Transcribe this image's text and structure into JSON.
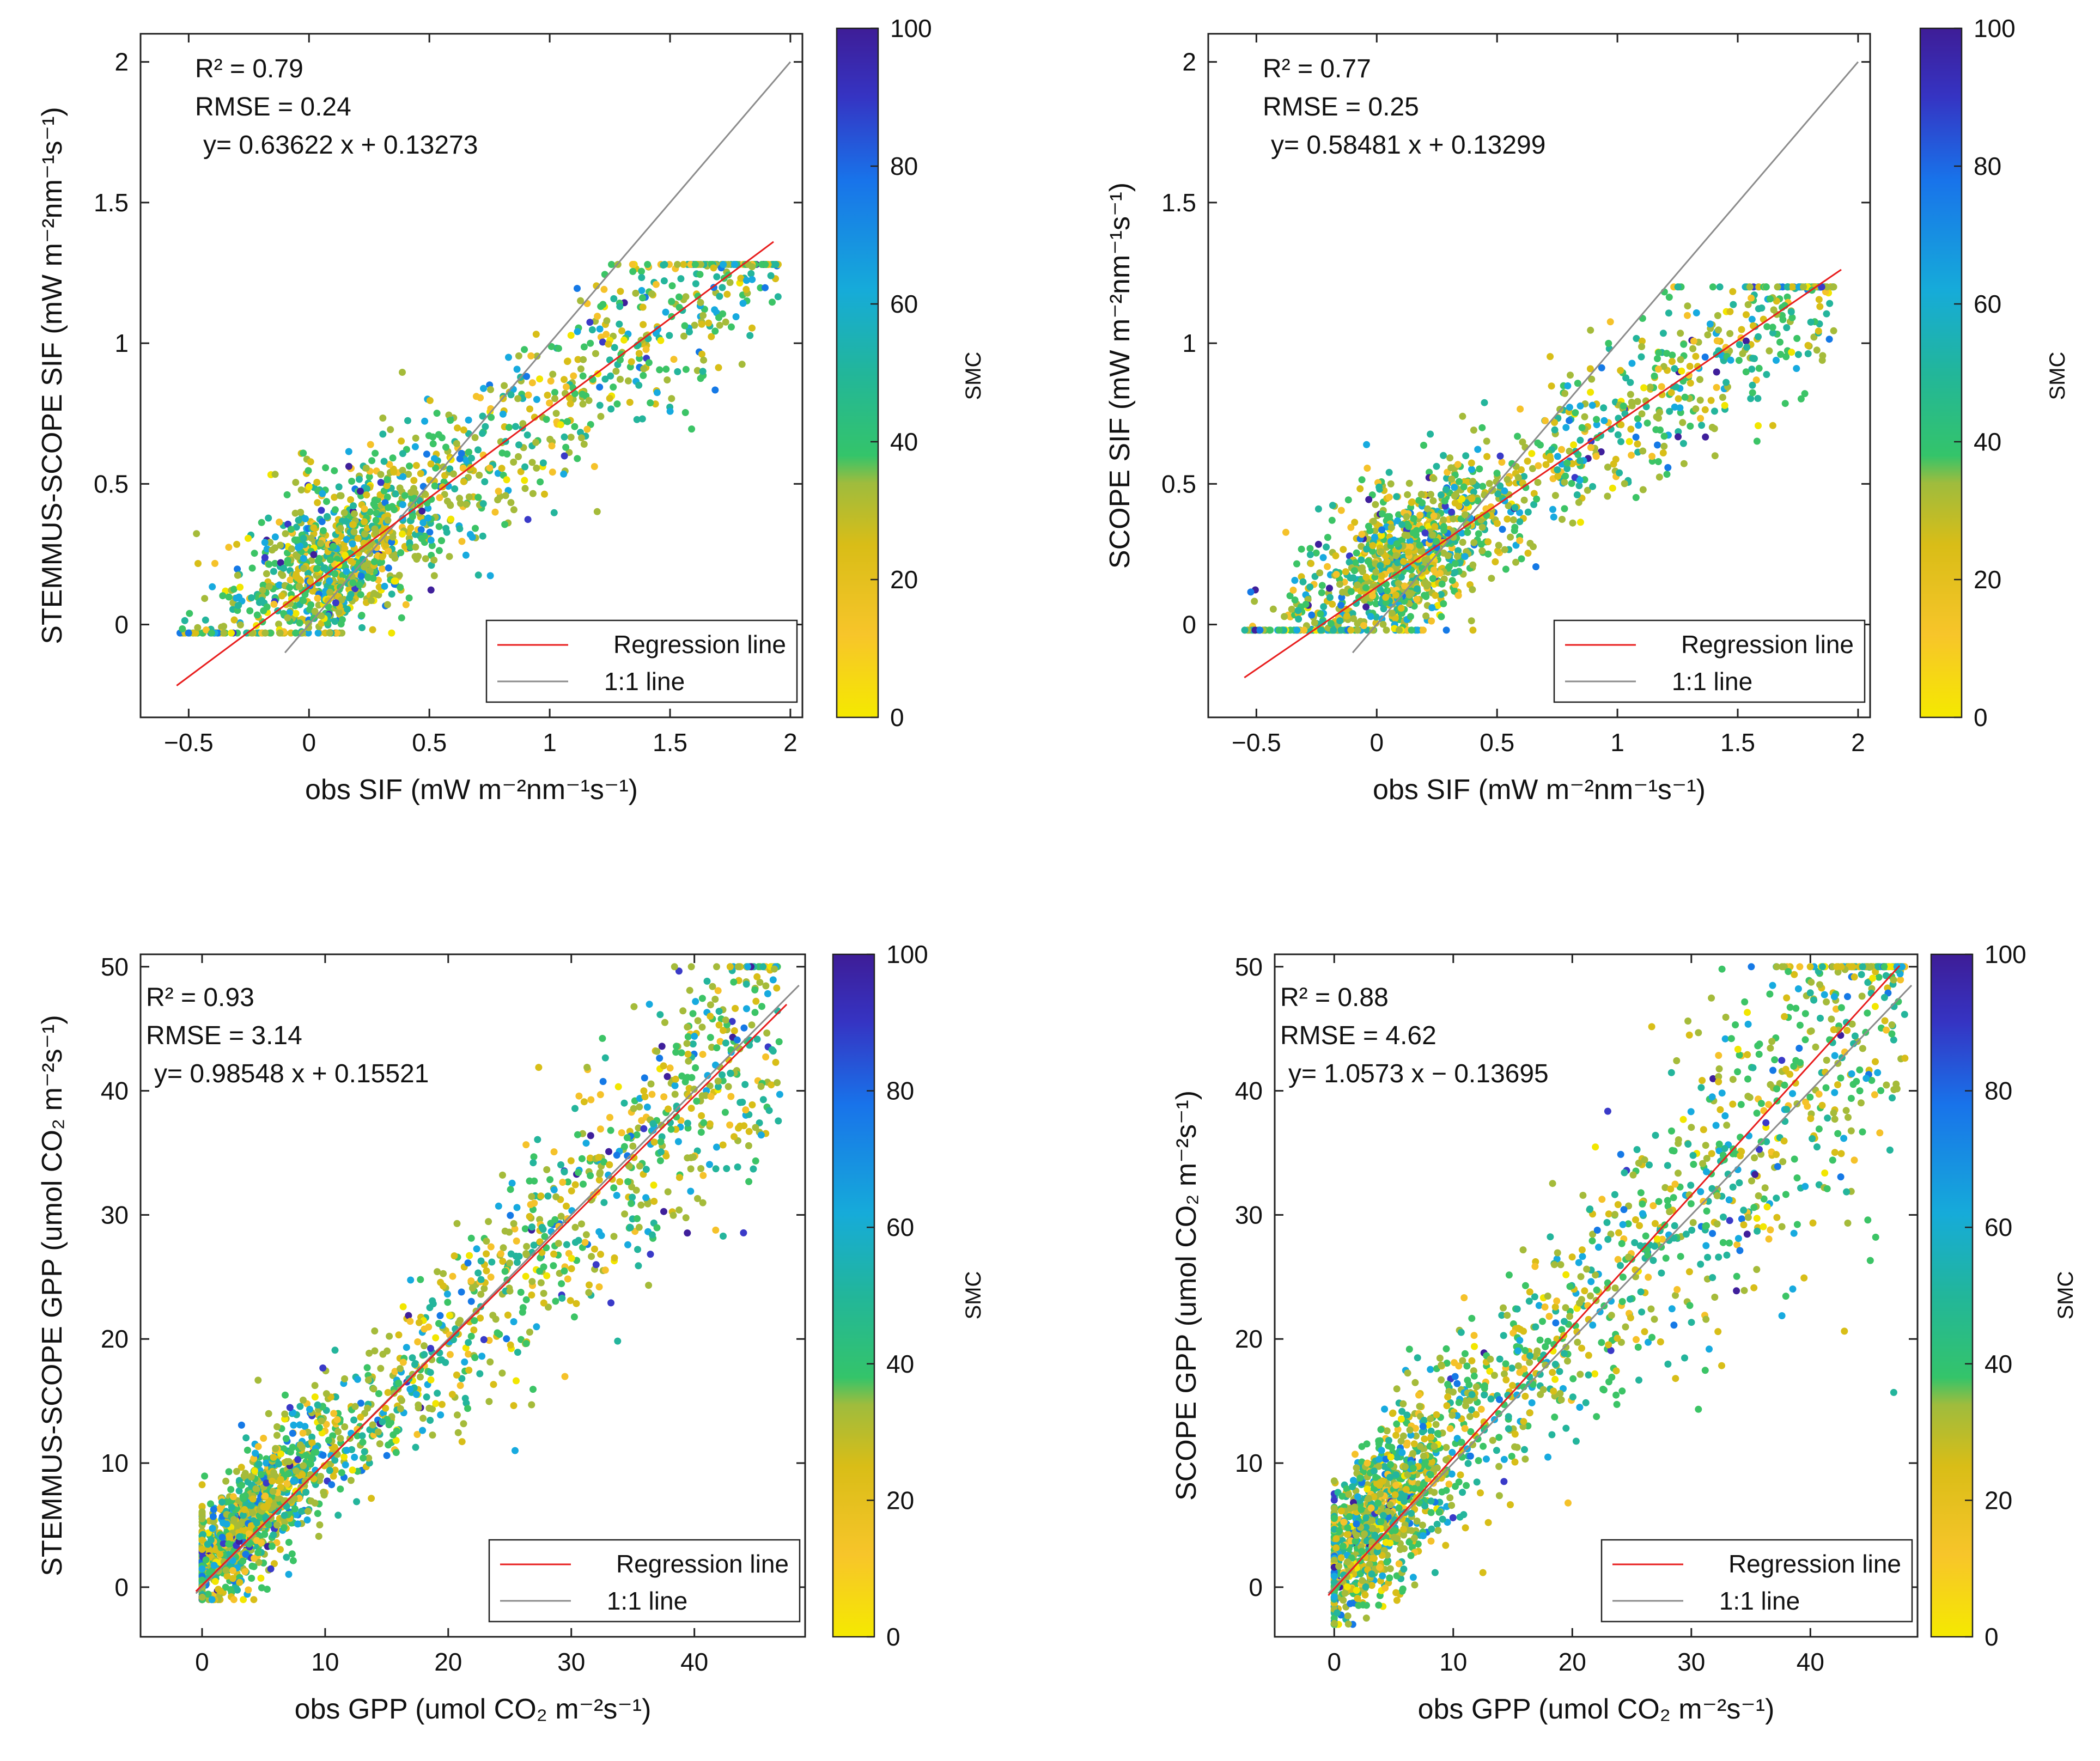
{
  "figure": {
    "smc_colorbar_colors": [
      "#f2e600",
      "#f5c22a",
      "#d8be18",
      "#a5bb3a",
      "#3cc466",
      "#24b59c",
      "#17aadf",
      "#1579e6",
      "#3a3ac8",
      "#3f1f9b"
    ]
  },
  "chart_data": [
    {
      "type": "scatter",
      "id": "panel-a",
      "xlabel": "obs SIF (mW m⁻²nm⁻¹s⁻¹)",
      "ylabel": "STEMMUS-SCOPE SIF (mW m⁻²nm⁻¹s⁻¹)",
      "xlim": [
        -0.7,
        2.05
      ],
      "ylim": [
        -0.33,
        2.1
      ],
      "xticks": [
        -0.5,
        0,
        0.5,
        1,
        1.5,
        2
      ],
      "xtick_labels": [
        "−0.5",
        "0",
        "0.5",
        "1",
        "1.5",
        "2"
      ],
      "yticks": [
        0,
        0.5,
        1,
        1.5,
        2
      ],
      "ytick_labels": [
        "0",
        "0.5",
        "1",
        "1.5",
        "2"
      ],
      "stats": {
        "r2": "R² = 0.79",
        "rmse": "RMSE = 0.24",
        "eq": "y=     0.63622 x + 0.13273"
      },
      "regression": {
        "slope": 0.63622,
        "intercept": 0.13273,
        "x_range": [
          -0.55,
          1.93
        ]
      },
      "one_to_one_range": [
        -0.1,
        2.0
      ],
      "gen": {
        "n": 1500,
        "xmin": -0.55,
        "xmax": 1.95,
        "xpeak": 0.05,
        "spread": 0.14,
        "spread_slope": 0.02,
        "seed": 11,
        "ymin": -0.03,
        "ymax": 1.28,
        "hump": 0.16
      },
      "legend": [
        "Regression line",
        "1:1 line"
      ],
      "colorbar": {
        "label": "SMC",
        "range": [
          0,
          100
        ],
        "ticks": [
          "0",
          "20",
          "40",
          "60",
          "80",
          "100"
        ]
      }
    },
    {
      "type": "scatter",
      "id": "panel-b",
      "xlabel": "obs SIF (mW m⁻²nm⁻¹s⁻¹)",
      "ylabel": "SCOPE SIF (mW m⁻²nm⁻¹s⁻¹)",
      "xlim": [
        -0.7,
        2.05
      ],
      "ylim": [
        -0.33,
        2.1
      ],
      "xticks": [
        -0.5,
        0,
        0.5,
        1,
        1.5,
        2
      ],
      "xtick_labels": [
        "−0.5",
        "0",
        "0.5",
        "1",
        "1.5",
        "2"
      ],
      "yticks": [
        0,
        0.5,
        1,
        1.5,
        2
      ],
      "ytick_labels": [
        "0",
        "0.5",
        "1",
        "1.5",
        "2"
      ],
      "stats": {
        "r2": "R² = 0.77",
        "rmse": "RMSE = 0.25",
        "eq": "y=     0.58481 x + 0.13299"
      },
      "regression": {
        "slope": 0.58481,
        "intercept": 0.13299,
        "x_range": [
          -0.55,
          1.93
        ]
      },
      "one_to_one_range": [
        -0.1,
        2.0
      ],
      "gen": {
        "n": 1500,
        "xmin": -0.55,
        "xmax": 1.9,
        "xpeak": 0.05,
        "spread": 0.13,
        "spread_slope": 0.02,
        "seed": 23,
        "ymin": -0.02,
        "ymax": 1.2,
        "hump": 0.14
      },
      "legend": [
        "Regression line",
        "1:1 line"
      ],
      "colorbar": {
        "label": "SMC",
        "range": [
          0,
          100
        ],
        "ticks": [
          "0",
          "20",
          "40",
          "60",
          "80",
          "100"
        ]
      }
    },
    {
      "type": "scatter",
      "id": "panel-c",
      "xlabel": "obs GPP (umol CO₂ m⁻²s⁻¹)",
      "ylabel": "STEMMUS-SCOPE GPP (umol CO₂ m⁻²s⁻¹)",
      "xlim": [
        -5,
        49
      ],
      "ylim": [
        -4,
        51
      ],
      "xticks": [
        0,
        10,
        20,
        30,
        40
      ],
      "xtick_labels": [
        "0",
        "10",
        "20",
        "30",
        "40"
      ],
      "yticks": [
        0,
        10,
        20,
        30,
        40,
        50
      ],
      "ytick_labels": [
        "0",
        "10",
        "20",
        "30",
        "40",
        "50"
      ],
      "stats": {
        "r2": "R² = 0.93",
        "rmse": "RMSE = 3.14",
        "eq": "y=     0.98548 x + 0.15521"
      },
      "regression": {
        "slope": 0.98548,
        "intercept": 0.15521,
        "x_range": [
          -0.5,
          47.5
        ]
      },
      "one_to_one_range": [
        -0.5,
        48.5
      ],
      "gen": {
        "n": 1900,
        "xmin": 0,
        "xmax": 47,
        "xpeak": 2,
        "spread": 1.8,
        "spread_slope": 0.09,
        "seed": 37,
        "ymin": -1,
        "ymax": 50,
        "hump": 3.0
      },
      "legend": [
        "Regression line",
        "1:1 line"
      ],
      "colorbar": {
        "label": "SMC",
        "range": [
          0,
          100
        ],
        "ticks": [
          "0",
          "20",
          "40",
          "60",
          "80",
          "100"
        ]
      }
    },
    {
      "type": "scatter",
      "id": "panel-d",
      "xlabel": "obs GPP (umol CO₂ m⁻²s⁻¹)",
      "ylabel": "SCOPE GPP (umol CO₂ m⁻²s⁻¹)",
      "xlim": [
        -5,
        49
      ],
      "ylim": [
        -4,
        51
      ],
      "xticks": [
        0,
        10,
        20,
        30,
        40
      ],
      "xtick_labels": [
        "0",
        "10",
        "20",
        "30",
        "40"
      ],
      "yticks": [
        0,
        10,
        20,
        30,
        40,
        50
      ],
      "ytick_labels": [
        "0",
        "10",
        "20",
        "30",
        "40",
        "50"
      ],
      "stats": {
        "r2": "R² = 0.88",
        "rmse": "RMSE = 4.62",
        "eq": "y=   1.0573 x − 0.13695"
      },
      "regression": {
        "slope": 1.0573,
        "intercept": -0.13695,
        "x_range": [
          -0.5,
          47.5
        ]
      },
      "one_to_one_range": [
        -0.5,
        48.5
      ],
      "gen": {
        "n": 1900,
        "xmin": 0,
        "xmax": 48,
        "xpeak": 2,
        "spread": 2.6,
        "spread_slope": 0.11,
        "seed": 53,
        "ymin": -3,
        "ymax": 50,
        "hump": 4.0
      },
      "legend": [
        "Regression line",
        "1:1 line"
      ],
      "colorbar": {
        "label": "SMC",
        "range": [
          0,
          100
        ],
        "ticks": [
          "0",
          "20",
          "40",
          "60",
          "80",
          "100"
        ]
      }
    }
  ]
}
